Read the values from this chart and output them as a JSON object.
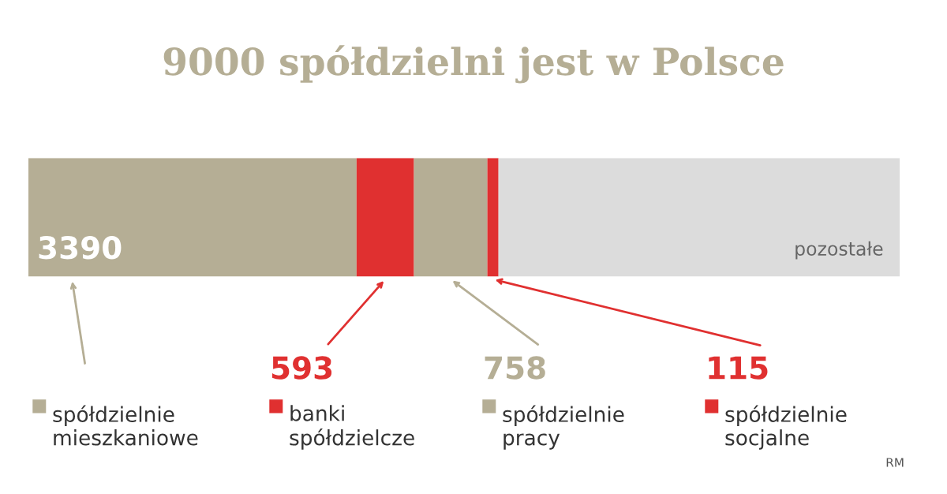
{
  "chart_data": {
    "type": "bar",
    "orientation": "horizontal",
    "stacked": true,
    "title": "9000 spółdzielni jest w Polsce",
    "categories": [
      null
    ],
    "series": [
      {
        "name": "spółdzielnie mieszkaniowe",
        "color": "#b5ae95",
        "values": [
          3390
        ],
        "value_labels": [
          "3390"
        ]
      },
      {
        "name": "banki spółdzielcze",
        "color": "#e03030",
        "values": [
          593
        ],
        "value_labels": [
          "593"
        ]
      },
      {
        "name": "spółdzielnie pracy",
        "color": "#b5ae95",
        "values": [
          758
        ],
        "value_labels": [
          "758"
        ]
      },
      {
        "name": "spółdzielnie socjalne",
        "color": "#e03030",
        "values": [
          115
        ],
        "value_labels": [
          "115"
        ]
      },
      {
        "name": "pozostałe",
        "color": "#dcdcdc",
        "values": [
          4144
        ],
        "value_labels": [
          null
        ]
      }
    ],
    "annotations": [
      "RM"
    ],
    "legend": "bottom"
  }
}
